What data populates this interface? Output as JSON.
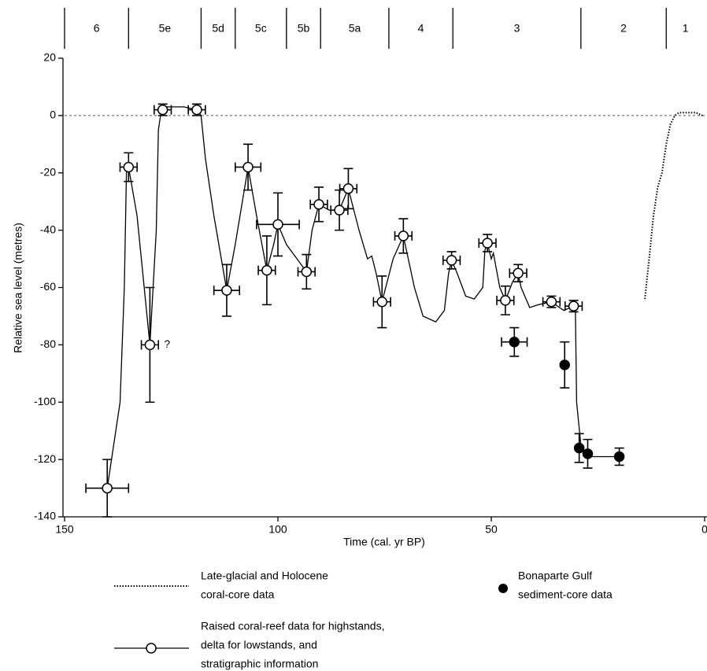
{
  "chart_data": {
    "type": "scatter",
    "x_label": "Time (cal. yr BP)",
    "y_label": "Relative sea level (metres)",
    "xlim": [
      150,
      0
    ],
    "ylim": [
      -140,
      20
    ],
    "xticks": [
      150,
      100,
      50,
      0
    ],
    "yticks": [
      -140,
      -120,
      -100,
      -80,
      -60,
      -40,
      -20,
      0,
      20
    ],
    "reference_line": 0,
    "stages": {
      "labels": [
        "6",
        "5e",
        "5d",
        "5c",
        "5b",
        "5a",
        "4",
        "3",
        "2",
        "1"
      ],
      "boundaries": [
        150,
        135,
        118,
        110,
        98,
        90,
        74,
        59,
        29,
        9,
        0
      ]
    },
    "annotations": [
      {
        "text": "?",
        "x": 130,
        "y": -80
      }
    ],
    "series": [
      {
        "name": [
          "Late-glacial and Holocene",
          "coral-core data"
        ],
        "color": "#000000",
        "line": "dotted",
        "x": [
          14,
          13,
          12,
          11,
          10,
          9,
          8,
          7,
          6,
          4,
          2,
          0.5
        ],
        "values": [
          -64,
          -50,
          -35,
          -25,
          -20,
          -10,
          -3,
          0,
          1,
          1,
          1,
          0
        ]
      },
      {
        "name": [
          "Raised coral-reef data for highstands,",
          "delta for lowstands, and",
          "stratigraphic information"
        ],
        "color": "#000000",
        "marker": "open",
        "line": "solid",
        "x": [
          140,
          135,
          130,
          127,
          119,
          112,
          107,
          102.6,
          100,
          93.3,
          90.4,
          85.6,
          83.5,
          75.6,
          70.6,
          59.3,
          50.9,
          46.7,
          43.7,
          35.9,
          30.7
        ],
        "values": [
          -130,
          -18,
          -80,
          2,
          2,
          -61,
          -18,
          -54,
          -38,
          -54.5,
          -31,
          -33,
          -25.5,
          -65,
          -42,
          -50.5,
          -44.5,
          -64.5,
          -55,
          -65,
          -66.5
        ],
        "xerr": [
          5,
          2,
          2,
          2,
          2,
          3,
          3,
          2,
          5,
          2,
          2,
          2,
          2,
          2,
          2,
          2,
          2,
          2,
          2,
          2,
          2
        ],
        "yerr": [
          10,
          5,
          20,
          2,
          2,
          9,
          8,
          12,
          11,
          6,
          6,
          7,
          7,
          9,
          6,
          3,
          3,
          5,
          3,
          2,
          2
        ],
        "curve": {
          "x": [
            140,
            137,
            136,
            135.5,
            135,
            133,
            130,
            128.5,
            128,
            127.5,
            126,
            122,
            119,
            118,
            117,
            115,
            112,
            110,
            107,
            105,
            102.6,
            101,
            100,
            98,
            93.3,
            92,
            90.4,
            88,
            85.6,
            83.5,
            81,
            79,
            78,
            77,
            75.6,
            73,
            70.6,
            68,
            66,
            63,
            61,
            60,
            59.3,
            58,
            56,
            54,
            52,
            51.5,
            50.9,
            50,
            49.5,
            48,
            46.7,
            45,
            43.7,
            43,
            41,
            39,
            35.9,
            34,
            33,
            30.7,
            30.3,
            30,
            29,
            28,
            20
          ],
          "values": [
            -130,
            -100,
            -60,
            -20,
            -18,
            -35,
            -80,
            -40,
            -5,
            0,
            3,
            3,
            2,
            0,
            -15,
            -35,
            -61,
            -45,
            -18,
            -35,
            -54,
            -45,
            -38,
            -45,
            -54.5,
            -40,
            -31,
            -33,
            -33,
            -25.5,
            -40,
            -50,
            -49,
            -55,
            -65,
            -50,
            -42,
            -60,
            -70,
            -72,
            -68,
            -55,
            -50.5,
            -55,
            -63,
            -64,
            -60,
            -47,
            -44.5,
            -50,
            -48,
            -60,
            -64.5,
            -58,
            -55,
            -60,
            -67,
            -66,
            -65,
            -67,
            -68,
            -66.5,
            -67,
            -100,
            -115,
            -119,
            -119
          ]
        }
      },
      {
        "name": [
          "Bonaparte Gulf",
          "sediment-core data"
        ],
        "color": "#000000",
        "marker": "filled",
        "x": [
          44.6,
          32.8,
          29.4,
          27.4,
          20
        ],
        "values": [
          -79,
          -87,
          -116,
          -118,
          -119
        ],
        "xerr": [
          3,
          null,
          null,
          null,
          null
        ],
        "yerr": [
          5,
          8,
          5,
          5,
          3
        ]
      }
    ]
  }
}
